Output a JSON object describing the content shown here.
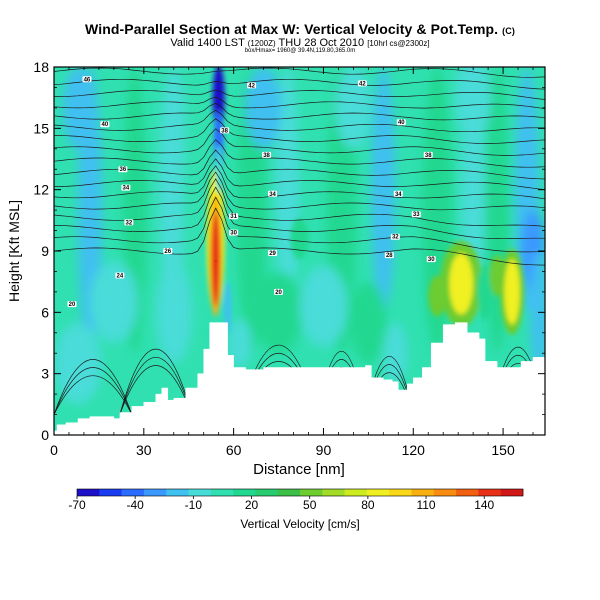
{
  "title": {
    "main": "Wind-Parallel Section at Max W: Vertical Velocity & Pot.Temp.",
    "main_suffix": "(C)",
    "valid_prefix": "Valid 1400 LST",
    "valid_utc": "(1200Z)",
    "valid_main": "THU 28 Oct 2010",
    "valid_run": "[10hrl cs@2300z]",
    "subline": "box/Hmax= 1960@ 39.4N,119.80,365.0m"
  },
  "chart_data": {
    "type": "heatmap",
    "xlabel": "Distance [nm]",
    "ylabel": "Height [Kft MSL]",
    "xlim": [
      0,
      164
    ],
    "ylim": [
      0,
      18
    ],
    "x_ticks": [
      0,
      30,
      60,
      90,
      120,
      150
    ],
    "x_tick_labels": [
      "0",
      "30",
      "60",
      "90",
      "120",
      "150"
    ],
    "y_ticks": [
      0,
      3,
      6,
      9,
      12,
      15,
      18
    ],
    "y_tick_labels": [
      "0",
      "3",
      "6",
      "9",
      "12",
      "15",
      "18"
    ],
    "colorbar": {
      "label": "Vertical Velocity [cm/s]",
      "range": [
        -70,
        160
      ],
      "tick_values": [
        -70,
        -40,
        -10,
        20,
        50,
        80,
        110,
        140
      ],
      "tick_labels": [
        "-70",
        "-40",
        "-10",
        "20",
        "50",
        "80",
        "110",
        "140"
      ],
      "colors": [
        "#1e10c8",
        "#1a3cf0",
        "#2a6cff",
        "#3a98ff",
        "#40c0f0",
        "#48dcd8",
        "#30e0b0",
        "#20d890",
        "#28cc70",
        "#3cc048",
        "#6ccc30",
        "#a0dc28",
        "#ccec20",
        "#f0f020",
        "#f8d818",
        "#f8b010",
        "#f88c10",
        "#f06010",
        "#e83018",
        "#d01818"
      ]
    },
    "terrain": [
      [
        0,
        0.2
      ],
      [
        1,
        0.5
      ],
      [
        4,
        0.6
      ],
      [
        8,
        0.8
      ],
      [
        12,
        0.9
      ],
      [
        16,
        0.9
      ],
      [
        20,
        0.8
      ],
      [
        22,
        1.1
      ],
      [
        26,
        1.4
      ],
      [
        30,
        1.6
      ],
      [
        34,
        2.0
      ],
      [
        36,
        2.3
      ],
      [
        38,
        1.7
      ],
      [
        40,
        1.8
      ],
      [
        44,
        2.3
      ],
      [
        48,
        3.0
      ],
      [
        50,
        4.2
      ],
      [
        52,
        5.5
      ],
      [
        56,
        5.5
      ],
      [
        58,
        3.9
      ],
      [
        60,
        3.3
      ],
      [
        64,
        3.2
      ],
      [
        70,
        3.3
      ],
      [
        76,
        3.3
      ],
      [
        82,
        3.3
      ],
      [
        88,
        3.3
      ],
      [
        94,
        3.3
      ],
      [
        100,
        3.3
      ],
      [
        104,
        3.4
      ],
      [
        106,
        2.8
      ],
      [
        110,
        2.7
      ],
      [
        113,
        2.6
      ],
      [
        115,
        2.2
      ],
      [
        118,
        2.5
      ],
      [
        120,
        2.8
      ],
      [
        123,
        3.3
      ],
      [
        126,
        4.5
      ],
      [
        130,
        5.4
      ],
      [
        134,
        5.5
      ],
      [
        138,
        5.0
      ],
      [
        142,
        4.7
      ],
      [
        144,
        3.6
      ],
      [
        148,
        3.3
      ],
      [
        152,
        3.3
      ],
      [
        156,
        3.6
      ],
      [
        160,
        3.8
      ],
      [
        164,
        3.8
      ]
    ],
    "vertical_velocity_features": [
      {
        "x": 54,
        "y": 8.5,
        "value": 140
      },
      {
        "x": 55,
        "y": 16.5,
        "value": -60
      },
      {
        "x": 136,
        "y": 7.5,
        "value": 80
      },
      {
        "x": 153,
        "y": 7.0,
        "value": 80
      },
      {
        "x": 128,
        "y": 6.8,
        "value": 50
      },
      {
        "x": 58,
        "y": 6.0,
        "value": -20
      }
    ],
    "isentropes": [
      {
        "label": "20",
        "x": 6,
        "y": 6.4
      },
      {
        "label": "20",
        "x": 75,
        "y": 7.0
      },
      {
        "label": "24",
        "x": 22,
        "y": 7.8
      },
      {
        "label": "26",
        "x": 38,
        "y": 9.0
      },
      {
        "label": "29",
        "x": 73,
        "y": 8.9
      },
      {
        "label": "28",
        "x": 112,
        "y": 8.8
      },
      {
        "label": "30",
        "x": 126,
        "y": 8.6
      },
      {
        "label": "30",
        "x": 60,
        "y": 9.9
      },
      {
        "label": "31",
        "x": 60,
        "y": 10.7
      },
      {
        "label": "32",
        "x": 25,
        "y": 10.4
      },
      {
        "label": "32",
        "x": 114,
        "y": 9.7
      },
      {
        "label": "34",
        "x": 24,
        "y": 12.1
      },
      {
        "label": "34",
        "x": 73,
        "y": 11.8
      },
      {
        "label": "33",
        "x": 121,
        "y": 10.8
      },
      {
        "label": "34",
        "x": 115,
        "y": 11.8
      },
      {
        "label": "36",
        "x": 23,
        "y": 13.0
      },
      {
        "label": "38",
        "x": 71,
        "y": 13.7
      },
      {
        "label": "38",
        "x": 125,
        "y": 13.7
      },
      {
        "label": "38",
        "x": 57,
        "y": 14.9
      },
      {
        "label": "40",
        "x": 17,
        "y": 15.2
      },
      {
        "label": "40",
        "x": 116,
        "y": 15.3
      },
      {
        "label": "42",
        "x": 66,
        "y": 17.1
      },
      {
        "label": "42",
        "x": 103,
        "y": 17.2
      },
      {
        "label": "46",
        "x": 11,
        "y": 17.4
      }
    ]
  }
}
